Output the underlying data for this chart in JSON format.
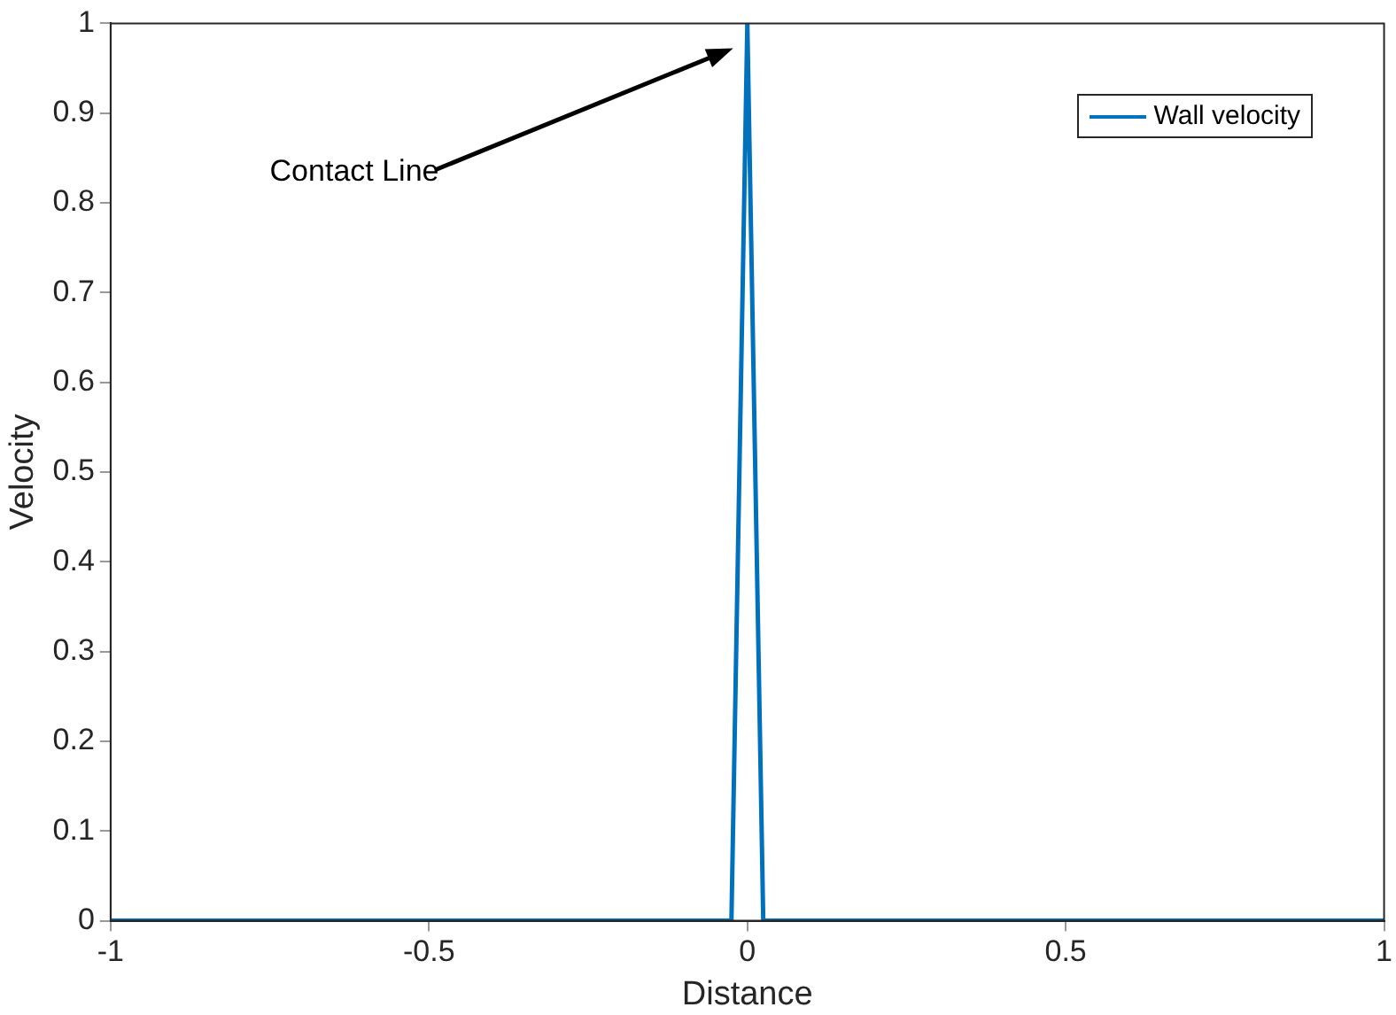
{
  "chart_data": {
    "type": "line",
    "xlabel": "Distance",
    "ylabel": "Velocity",
    "x": [
      -1,
      -0.025,
      0,
      0.025,
      1
    ],
    "series": [
      {
        "name": "Wall velocity",
        "color": "#0072bd",
        "values": [
          0,
          0,
          1,
          0,
          0
        ]
      }
    ],
    "xlim": [
      -1,
      1
    ],
    "xticks": [
      -1,
      -0.5,
      0,
      0.5,
      1
    ],
    "ylim": [
      0,
      1
    ],
    "yticks": [
      0,
      0.1,
      0.2,
      0.3,
      0.4,
      0.5,
      0.6,
      0.7,
      0.8,
      0.9,
      1
    ],
    "annotations": [
      "Contact Line"
    ],
    "grid": false,
    "legend": "top right",
    "marker": "none",
    "line_style": "solid"
  }
}
